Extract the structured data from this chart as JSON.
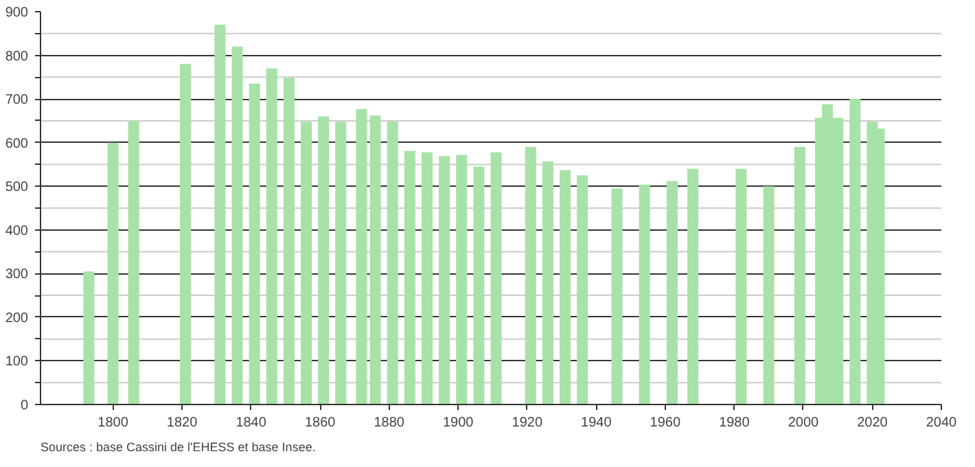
{
  "chart_data": {
    "type": "bar",
    "x": [
      1793,
      1800,
      1806,
      1821,
      1831,
      1836,
      1841,
      1846,
      1851,
      1856,
      1861,
      1866,
      1872,
      1876,
      1881,
      1886,
      1891,
      1896,
      1901,
      1906,
      1911,
      1921,
      1926,
      1931,
      1936,
      1946,
      1954,
      1962,
      1968,
      1982,
      1990,
      1999,
      2005,
      2007,
      2010,
      2015,
      2020,
      2022
    ],
    "values": [
      305,
      600,
      650,
      780,
      870,
      820,
      735,
      770,
      748,
      648,
      660,
      648,
      677,
      662,
      648,
      581,
      578,
      569,
      572,
      545,
      578,
      590,
      557,
      537,
      525,
      495,
      504,
      512,
      540,
      540,
      500,
      590,
      657,
      688,
      657,
      700,
      648,
      632
    ],
    "color": "#a8e2a8",
    "xlim": [
      1779,
      2040
    ],
    "xticks": [
      1800,
      1820,
      1840,
      1860,
      1880,
      1900,
      1920,
      1940,
      1960,
      1980,
      2000,
      2020,
      2040
    ],
    "ylim": [
      0,
      900
    ],
    "yticks": [
      0,
      {
        "value": 50,
        "label": null
      },
      100,
      {
        "value": 150,
        "label": null
      },
      200,
      {
        "value": 250,
        "label": null
      },
      300,
      {
        "value": 350,
        "label": null
      },
      400,
      {
        "value": 450,
        "label": null
      },
      500,
      {
        "value": 550,
        "label": null
      },
      600,
      {
        "value": 650,
        "label": null
      },
      700,
      {
        "value": 750,
        "label": null
      },
      800,
      {
        "value": 850,
        "label": null
      },
      900
    ],
    "grid": "y",
    "annotations": [
      "Sources : base Cassini de l'EHESS et base Insee."
    ]
  }
}
